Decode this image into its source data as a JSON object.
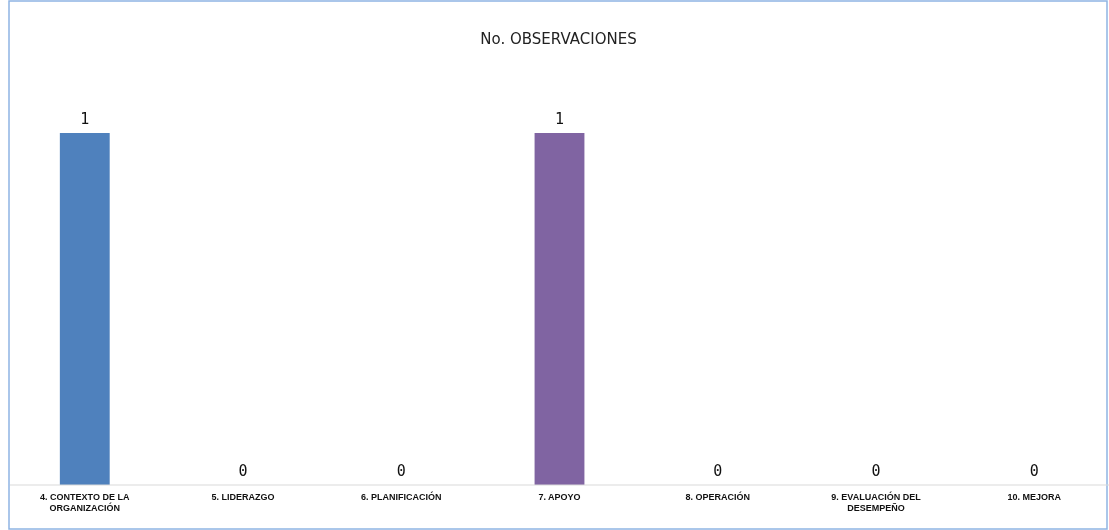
{
  "chart_data": {
    "type": "bar",
    "title": "No. OBSERVACIONES",
    "categories": [
      "4. CONTEXTO DE LA ORGANIZACIÓN",
      "5. LIDERAZGO",
      "6. PLANIFICACIÓN",
      "7. APOYO",
      "8. OPERACIÓN",
      "9. EVALUACIÓN DEL DESEMPEÑO",
      "10. MEJORA"
    ],
    "values": [
      1,
      0,
      0,
      1,
      0,
      0,
      0
    ],
    "colors": [
      "#4f81bd",
      "#c0504d",
      "#9bbb59",
      "#8064a2",
      "#4bacc6",
      "#f79646",
      "#2c4d75"
    ],
    "data_labels": true
  }
}
